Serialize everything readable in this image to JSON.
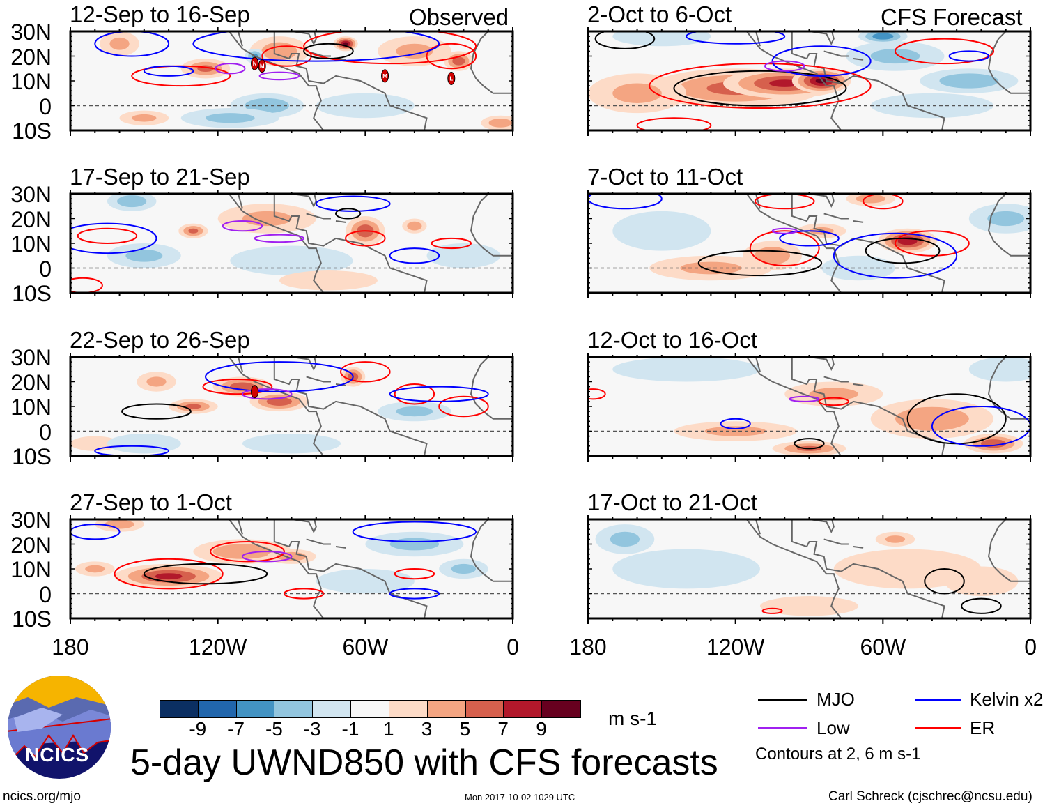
{
  "title": "5-day UWND850 with CFS forecasts",
  "column_labels": {
    "observed": "Observed",
    "forecast": "CFS Forecast"
  },
  "lat_ticks": [
    "30N",
    "20N",
    "10N",
    "0",
    "10S"
  ],
  "lon_ticks": [
    "180",
    "120W",
    "60W",
    "0"
  ],
  "colorbar": {
    "unit": "m s-1",
    "labels": [
      "-9",
      "-7",
      "-5",
      "-3",
      "-1",
      "1",
      "3",
      "5",
      "7",
      "9"
    ],
    "colors": [
      "#0b2f62",
      "#2166ac",
      "#4393c3",
      "#92c5de",
      "#d1e5f0",
      "#f7f7f7",
      "#fddbc7",
      "#f4a582",
      "#d6604d",
      "#b2182b",
      "#67001f"
    ]
  },
  "legend": {
    "items": [
      {
        "label": "MJO",
        "color": "#000000"
      },
      {
        "label": "Kelvin x2",
        "color": "#0000ff"
      },
      {
        "label": "Low",
        "color": "#a020f0"
      },
      {
        "label": "ER",
        "color": "#ff0000"
      }
    ],
    "note": "Contours at 2, 6 m s-1"
  },
  "footer": {
    "left": "ncics.org/mjo",
    "center": "Mon 2017-10-02 1029 UTC",
    "right": "Carl Schreck (cjschrec@ncsu.edu)"
  },
  "logo_text": "NCICS",
  "chart_data": {
    "type": "heatmap",
    "variable": "850-hPa zonal wind anomaly",
    "lon_range": [
      -180,
      0
    ],
    "lat_range": [
      -10,
      30
    ],
    "panels": [
      {
        "title": "12-Sep to 16-Sep",
        "kind": "observed",
        "blobs": [
          [
            -160,
            25,
            8,
            5,
            3
          ],
          [
            -125,
            15,
            10,
            4,
            5
          ],
          [
            -95,
            22,
            12,
            6,
            4
          ],
          [
            -68,
            25,
            5,
            3,
            9
          ],
          [
            -40,
            22,
            15,
            6,
            3
          ],
          [
            -22,
            18,
            6,
            4,
            6
          ],
          [
            -105,
            20,
            4,
            3,
            -5
          ],
          [
            -100,
            0,
            15,
            5,
            -4
          ],
          [
            -115,
            -5,
            20,
            4,
            -3
          ],
          [
            -60,
            0,
            20,
            5,
            -2
          ],
          [
            -150,
            -5,
            10,
            3,
            3
          ],
          [
            -5,
            -7,
            8,
            3,
            4
          ]
        ],
        "contours": [
          [
            "ER",
            -135,
            12,
            20,
            4
          ],
          [
            "ER",
            -92,
            20,
            10,
            4
          ],
          [
            "ER",
            -50,
            24,
            35,
            7
          ],
          [
            "ER",
            -25,
            20,
            10,
            5
          ],
          [
            "Kelvin",
            -80,
            25,
            50,
            7
          ],
          [
            "Kelvin",
            -155,
            25,
            15,
            5
          ],
          [
            "Kelvin",
            -140,
            14,
            10,
            2
          ],
          [
            "Low",
            -115,
            15,
            6,
            2
          ],
          [
            "Low",
            -95,
            12,
            8,
            1.5
          ],
          [
            "MJO",
            -75,
            22,
            10,
            3
          ]
        ],
        "storms": [
          [
            "N",
            -105,
            17
          ],
          [
            "M",
            -102,
            16
          ],
          [
            "M",
            -52,
            12
          ],
          [
            "L",
            -25,
            11
          ]
        ]
      },
      {
        "title": "17-Sep to 21-Sep",
        "kind": "observed",
        "blobs": [
          [
            -155,
            27,
            10,
            4,
            -4
          ],
          [
            -130,
            15,
            6,
            3,
            5
          ],
          [
            -60,
            15,
            8,
            6,
            6
          ],
          [
            -100,
            20,
            20,
            6,
            3
          ],
          [
            -40,
            17,
            5,
            3,
            4
          ],
          [
            -90,
            3,
            25,
            6,
            -2
          ],
          [
            -150,
            5,
            15,
            5,
            -3
          ],
          [
            -20,
            5,
            15,
            5,
            -2
          ],
          [
            -75,
            -5,
            20,
            4,
            2
          ]
        ],
        "contours": [
          [
            "ER",
            -60,
            12,
            8,
            3
          ],
          [
            "ER",
            -165,
            13,
            12,
            3
          ],
          [
            "ER",
            -175,
            -7,
            8,
            3
          ],
          [
            "ER",
            -25,
            10,
            8,
            2
          ],
          [
            "Kelvin",
            -165,
            12,
            20,
            6
          ],
          [
            "Kelvin",
            -65,
            26,
            15,
            3
          ],
          [
            "Kelvin",
            -40,
            5,
            10,
            3
          ],
          [
            "Low",
            -110,
            17,
            8,
            2
          ],
          [
            "Low",
            -95,
            12,
            10,
            1.5
          ],
          [
            "MJO",
            -67,
            22,
            5,
            2
          ]
        ],
        "storms": []
      },
      {
        "title": "22-Sep to 26-Sep",
        "kind": "observed",
        "blobs": [
          [
            -110,
            18,
            12,
            4,
            6
          ],
          [
            -95,
            12,
            12,
            4,
            6
          ],
          [
            -130,
            10,
            10,
            3,
            5
          ],
          [
            -65,
            22,
            5,
            4,
            6
          ],
          [
            -145,
            20,
            8,
            4,
            3
          ],
          [
            -170,
            -5,
            10,
            3,
            2
          ],
          [
            -40,
            8,
            15,
            4,
            -3
          ],
          [
            -90,
            -5,
            20,
            4,
            -2
          ],
          [
            -150,
            -5,
            15,
            4,
            -2
          ]
        ],
        "contours": [
          [
            "ER",
            -112,
            18,
            14,
            3
          ],
          [
            "ER",
            -60,
            24,
            10,
            4
          ],
          [
            "ER",
            -40,
            15,
            8,
            4
          ],
          [
            "ER",
            -20,
            10,
            10,
            4
          ],
          [
            "Kelvin",
            -95,
            22,
            30,
            6
          ],
          [
            "Kelvin",
            -155,
            -8,
            15,
            2
          ],
          [
            "Kelvin",
            -30,
            15,
            20,
            3
          ],
          [
            "Low",
            -100,
            15,
            10,
            2
          ],
          [
            "MJO",
            -145,
            8,
            14,
            3
          ]
        ],
        "storms": [
          [
            "",
            -105,
            16
          ]
        ]
      },
      {
        "title": "27-Sep to 1-Oct",
        "kind": "observed",
        "blobs": [
          [
            -140,
            7,
            22,
            5,
            7
          ],
          [
            -110,
            17,
            20,
            5,
            4
          ],
          [
            -90,
            15,
            10,
            3,
            4
          ],
          [
            -170,
            10,
            8,
            3,
            3
          ],
          [
            -40,
            20,
            20,
            5,
            -3
          ],
          [
            -60,
            5,
            20,
            5,
            -2
          ],
          [
            -20,
            10,
            10,
            4,
            -3
          ],
          [
            -160,
            28,
            10,
            3,
            4
          ]
        ],
        "contours": [
          [
            "ER",
            -140,
            8,
            22,
            6
          ],
          [
            "ER",
            -108,
            17,
            15,
            4
          ],
          [
            "ER",
            -40,
            8,
            8,
            2
          ],
          [
            "ER",
            -85,
            0,
            8,
            2
          ],
          [
            "Kelvin",
            -40,
            25,
            25,
            4
          ],
          [
            "Kelvin",
            -170,
            25,
            10,
            3
          ],
          [
            "Kelvin",
            -40,
            0,
            10,
            2
          ],
          [
            "Low",
            -100,
            15,
            10,
            2
          ],
          [
            "MJO",
            -125,
            8,
            25,
            4
          ]
        ],
        "storms": []
      },
      {
        "title": "2-Oct to 6-Oct",
        "kind": "forecast",
        "blobs": [
          [
            -120,
            7,
            35,
            8,
            5
          ],
          [
            -100,
            9,
            25,
            6,
            7
          ],
          [
            -85,
            10,
            12,
            5,
            9
          ],
          [
            -55,
            20,
            20,
            6,
            -3
          ],
          [
            -60,
            28,
            10,
            3,
            -6
          ],
          [
            -150,
            28,
            20,
            4,
            -2
          ],
          [
            -25,
            10,
            20,
            5,
            -4
          ],
          [
            -160,
            5,
            20,
            8,
            3
          ],
          [
            -40,
            0,
            25,
            5,
            -2
          ]
        ],
        "contours": [
          [
            "ER",
            -110,
            8,
            45,
            9
          ],
          [
            "ER",
            -35,
            22,
            20,
            5
          ],
          [
            "ER",
            -145,
            -8,
            15,
            3
          ],
          [
            "MJO",
            -110,
            7,
            35,
            7
          ],
          [
            "MJO",
            -165,
            27,
            12,
            4
          ],
          [
            "Kelvin",
            -120,
            28,
            20,
            3
          ],
          [
            "Kelvin",
            -85,
            18,
            20,
            6
          ],
          [
            "Kelvin",
            -25,
            20,
            8,
            2
          ],
          [
            "Low",
            -100,
            16,
            8,
            2
          ]
        ],
        "storms": []
      },
      {
        "title": "7-Oct to 11-Oct",
        "kind": "forecast",
        "blobs": [
          [
            -50,
            11,
            12,
            5,
            8
          ],
          [
            -105,
            5,
            12,
            6,
            4
          ],
          [
            -85,
            15,
            10,
            3,
            3
          ],
          [
            -130,
            0,
            25,
            5,
            3
          ],
          [
            -65,
            28,
            10,
            3,
            4
          ],
          [
            -150,
            15,
            20,
            8,
            -2
          ],
          [
            -10,
            20,
            15,
            6,
            -3
          ],
          [
            -70,
            0,
            15,
            5,
            -2
          ]
        ],
        "contours": [
          [
            "ER",
            -100,
            8,
            14,
            7
          ],
          [
            "ER",
            -40,
            10,
            15,
            5
          ],
          [
            "ER",
            -100,
            27,
            12,
            3
          ],
          [
            "ER",
            -60,
            27,
            8,
            3
          ],
          [
            "MJO",
            -110,
            2,
            25,
            5
          ],
          [
            "MJO",
            -52,
            7,
            15,
            5
          ],
          [
            "Kelvin",
            -55,
            5,
            25,
            9
          ],
          [
            "Kelvin",
            -90,
            12,
            12,
            3
          ],
          [
            "Kelvin",
            -165,
            28,
            15,
            4
          ],
          [
            "Low",
            -100,
            15,
            5,
            1
          ]
        ],
        "storms": []
      },
      {
        "title": "12-Oct to 16-Oct",
        "kind": "forecast",
        "blobs": [
          [
            -40,
            5,
            25,
            8,
            4
          ],
          [
            -15,
            -5,
            12,
            4,
            6
          ],
          [
            -90,
            -7,
            15,
            3,
            5
          ],
          [
            -120,
            0,
            25,
            4,
            3
          ],
          [
            -80,
            15,
            20,
            5,
            3
          ],
          [
            -140,
            25,
            30,
            5,
            -2
          ],
          [
            -10,
            25,
            15,
            5,
            -2
          ]
        ],
        "contours": [
          [
            "MJO",
            -30,
            5,
            20,
            10
          ],
          [
            "MJO",
            -90,
            -5,
            6,
            2
          ],
          [
            "Kelvin",
            -20,
            2,
            20,
            8
          ],
          [
            "Kelvin",
            -120,
            3,
            6,
            2
          ],
          [
            "ER",
            -80,
            12,
            6,
            1.5
          ],
          [
            "ER",
            -178,
            15,
            5,
            2
          ],
          [
            "Low",
            -92,
            13,
            6,
            1
          ]
        ],
        "storms": []
      },
      {
        "title": "17-Oct to 21-Oct",
        "kind": "forecast",
        "blobs": [
          [
            -165,
            22,
            12,
            6,
            -3
          ],
          [
            -140,
            10,
            30,
            8,
            -1.5
          ],
          [
            -50,
            10,
            30,
            8,
            2
          ],
          [
            -55,
            22,
            8,
            3,
            3
          ],
          [
            -20,
            5,
            15,
            6,
            2
          ],
          [
            -90,
            -5,
            20,
            4,
            1.5
          ]
        ],
        "contours": [
          [
            "MJO",
            -35,
            5,
            8,
            5
          ],
          [
            "MJO",
            -20,
            -5,
            8,
            3
          ],
          [
            "ER",
            -105,
            -7,
            4,
            1
          ]
        ],
        "storms": []
      }
    ]
  }
}
